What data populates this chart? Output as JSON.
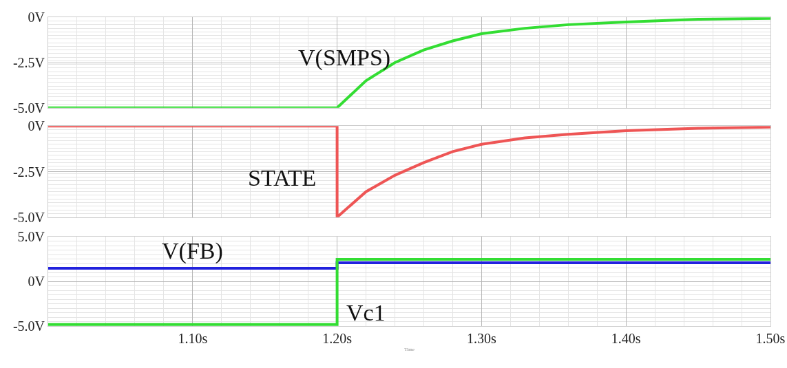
{
  "chart_data": [
    {
      "type": "line",
      "xlim": [
        1.0,
        1.5
      ],
      "xticks": [
        {
          "value": 1.1,
          "label": null
        },
        {
          "value": 1.2,
          "label": null
        },
        {
          "value": 1.3,
          "label": null
        },
        {
          "value": 1.4,
          "label": null
        },
        {
          "value": 1.5,
          "label": null
        }
      ],
      "ylim": [
        -5,
        0
      ],
      "yticks": [
        {
          "value": 0,
          "label": "0V"
        },
        {
          "value": -2.5,
          "label": "-2.5V"
        },
        {
          "value": -5,
          "label": "-5.0V"
        }
      ],
      "grid": true,
      "tick_labels": "y",
      "series": [
        {
          "name": "V(SMPS)",
          "color": "#33dd33",
          "x": [
            1.0,
            1.2,
            1.22,
            1.24,
            1.26,
            1.28,
            1.3,
            1.33,
            1.36,
            1.4,
            1.45,
            1.5
          ],
          "values": [
            -5,
            -5,
            -3.5,
            -2.5,
            -1.8,
            -1.3,
            -0.9,
            -0.6,
            -0.4,
            -0.25,
            -0.1,
            -0.05
          ]
        }
      ]
    },
    {
      "type": "line",
      "xlim": [
        1.0,
        1.5
      ],
      "xticks": [
        {
          "value": 1.1,
          "label": null
        },
        {
          "value": 1.2,
          "label": null
        },
        {
          "value": 1.3,
          "label": null
        },
        {
          "value": 1.4,
          "label": null
        },
        {
          "value": 1.5,
          "label": null
        }
      ],
      "ylim": [
        -5,
        0
      ],
      "yticks": [
        {
          "value": 0,
          "label": "0V"
        },
        {
          "value": -2.5,
          "label": "-2.5V"
        },
        {
          "value": -5,
          "label": "-5.0V"
        }
      ],
      "grid": true,
      "tick_labels": "y",
      "series": [
        {
          "name": "STATE",
          "color": "#ee5555",
          "x": [
            1.0,
            1.2,
            1.2,
            1.22,
            1.24,
            1.26,
            1.28,
            1.3,
            1.33,
            1.36,
            1.4,
            1.45,
            1.5
          ],
          "values": [
            0,
            0,
            -5,
            -3.6,
            -2.7,
            -2.0,
            -1.4,
            -1.0,
            -0.65,
            -0.45,
            -0.25,
            -0.12,
            -0.05
          ]
        }
      ]
    },
    {
      "type": "line",
      "xlim": [
        1.0,
        1.5
      ],
      "xticks": [
        {
          "value": 1.1,
          "label": "1.10s"
        },
        {
          "value": 1.2,
          "label": "1.20s"
        },
        {
          "value": 1.3,
          "label": "1.30s"
        },
        {
          "value": 1.4,
          "label": "1.40s"
        },
        {
          "value": 1.5,
          "label": "1.50s"
        }
      ],
      "ylim": [
        -5,
        5
      ],
      "yticks": [
        {
          "value": 5,
          "label": "5.0V"
        },
        {
          "value": 0,
          "label": "0V"
        },
        {
          "value": -5,
          "label": "-5.0V"
        }
      ],
      "grid": true,
      "xlabel": "Time",
      "series": [
        {
          "name": "V(FB)",
          "color": "#2222dd",
          "x": [
            1.0,
            1.2,
            1.2,
            1.5
          ],
          "values": [
            1.5,
            1.5,
            2.1,
            2.1
          ]
        },
        {
          "name": "Vc1",
          "color": "#33dd33",
          "x": [
            1.0,
            1.2,
            1.2,
            1.5
          ],
          "values": [
            -4.8,
            -4.8,
            2.5,
            2.5
          ]
        }
      ]
    }
  ]
}
